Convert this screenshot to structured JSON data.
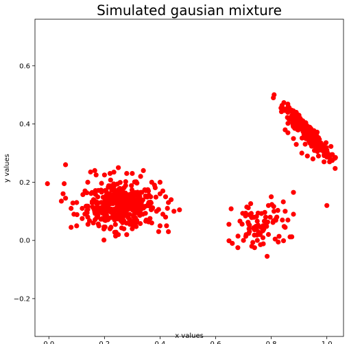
{
  "chart_data": {
    "type": "scatter",
    "title": "Simulated gausian mixture",
    "xlabel": "x values",
    "ylabel": "y values",
    "xlim": [
      -0.05,
      1.06
    ],
    "ylim": [
      -0.33,
      0.76
    ],
    "xticks": [
      0.0,
      0.2,
      0.4,
      0.6,
      0.8,
      1.0
    ],
    "xtick_labels": [
      "0.0",
      "0.2",
      "0.4",
      "0.6",
      "0.8",
      "1.0"
    ],
    "yticks": [
      -0.2,
      0.0,
      0.2,
      0.4,
      0.6
    ],
    "ytick_labels": [
      "−0.2",
      "0.0",
      "0.2",
      "0.4",
      "0.6"
    ],
    "grid": false,
    "legend": "none",
    "marker_color": "#ff0000",
    "clusters": [
      {
        "center": [
          0.26,
          0.12
        ],
        "spread": [
          0.06,
          0.035
        ],
        "count": 420
      },
      {
        "center": [
          0.93,
          0.37
        ],
        "spread": [
          0.03,
          0.03
        ],
        "count": 220
      },
      {
        "center": [
          0.76,
          0.05
        ],
        "spread": [
          0.05,
          0.04
        ],
        "count": 70
      }
    ],
    "points": [
      [
        -0.005,
        0.195
      ],
      [
        0.06,
        0.26
      ],
      [
        0.055,
        0.195
      ],
      [
        0.06,
        0.145
      ],
      [
        0.045,
        0.135
      ],
      [
        0.08,
        0.045
      ],
      [
        0.1,
        0.05
      ],
      [
        0.12,
        0.075
      ],
      [
        0.13,
        0.17
      ],
      [
        0.14,
        0.2
      ],
      [
        0.15,
        0.235
      ],
      [
        0.165,
        0.24
      ],
      [
        0.17,
        0.225
      ],
      [
        0.2,
        0.225
      ],
      [
        0.22,
        0.23
      ],
      [
        0.25,
        0.25
      ],
      [
        0.28,
        0.23
      ],
      [
        0.3,
        0.23
      ],
      [
        0.33,
        0.22
      ],
      [
        0.34,
        0.24
      ],
      [
        0.37,
        0.2
      ],
      [
        0.38,
        0.19
      ],
      [
        0.4,
        0.2
      ],
      [
        0.4,
        0.16
      ],
      [
        0.41,
        0.17
      ],
      [
        0.42,
        0.15
      ],
      [
        0.43,
        0.13
      ],
      [
        0.44,
        0.14
      ],
      [
        0.42,
        0.08
      ],
      [
        0.43,
        0.03
      ],
      [
        0.4,
        0.05
      ],
      [
        0.37,
        0.06
      ],
      [
        0.35,
        0.07
      ],
      [
        0.3,
        0.04
      ],
      [
        0.28,
        0.02
      ],
      [
        0.27,
        0.04
      ],
      [
        0.25,
        0.02
      ],
      [
        0.24,
        0.015
      ],
      [
        0.22,
        0.04
      ],
      [
        0.2,
        0.07
      ],
      [
        0.18,
        0.05
      ],
      [
        0.16,
        0.06
      ],
      [
        0.14,
        0.08
      ],
      [
        0.12,
        0.11
      ],
      [
        0.1,
        0.13
      ],
      [
        0.09,
        0.09
      ],
      [
        0.08,
        0.11
      ],
      [
        0.47,
        0.105
      ],
      [
        0.45,
        0.1
      ],
      [
        0.41,
        0.09
      ],
      [
        0.835,
        0.455
      ],
      [
        0.85,
        0.45
      ],
      [
        0.86,
        0.44
      ],
      [
        0.865,
        0.455
      ],
      [
        0.88,
        0.445
      ],
      [
        0.89,
        0.44
      ],
      [
        0.9,
        0.43
      ],
      [
        0.87,
        0.415
      ],
      [
        0.85,
        0.38
      ],
      [
        0.86,
        0.37
      ],
      [
        0.88,
        0.35
      ],
      [
        0.89,
        0.33
      ],
      [
        0.91,
        0.3
      ],
      [
        0.93,
        0.29
      ],
      [
        0.95,
        0.28
      ],
      [
        0.97,
        0.29
      ],
      [
        0.99,
        0.27
      ],
      [
        1.01,
        0.27
      ],
      [
        1.02,
        0.295
      ],
      [
        1.0,
        0.31
      ],
      [
        1.0,
        0.12
      ],
      [
        0.88,
        0.165
      ],
      [
        0.66,
        -0.01
      ],
      [
        0.68,
        -0.025
      ],
      [
        0.7,
        0.0
      ],
      [
        0.71,
        0.02
      ],
      [
        0.72,
        0.04
      ],
      [
        0.73,
        -0.02
      ],
      [
        0.74,
        -0.025
      ],
      [
        0.75,
        0.0
      ],
      [
        0.76,
        0.02
      ],
      [
        0.77,
        0.05
      ],
      [
        0.78,
        0.08
      ],
      [
        0.79,
        0.12
      ],
      [
        0.8,
        0.15
      ],
      [
        0.81,
        0.1
      ],
      [
        0.82,
        0.08
      ],
      [
        0.84,
        0.07
      ],
      [
        0.85,
        0.1
      ],
      [
        0.86,
        0.07
      ],
      [
        0.85,
        0.045
      ],
      [
        0.88,
        0.09
      ]
    ]
  }
}
